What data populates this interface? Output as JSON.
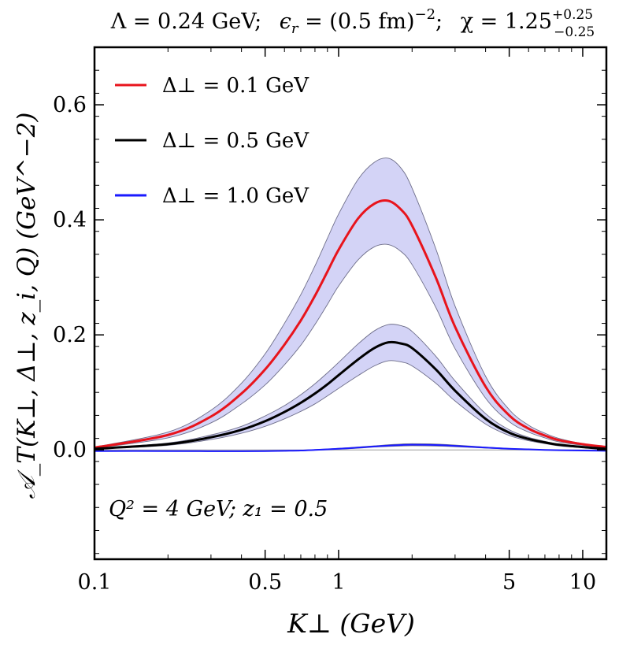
{
  "chart_data": {
    "type": "line",
    "title": "Λ = 0.24 GeV;  ϵ_r = (0.5 fm)^−2;  χ = 1.25^{+0.25}_{−0.25}",
    "title_parts": {
      "lambda": "Λ = 0.24 GeV;",
      "epsilon_lhs": "ϵ",
      "epsilon_sub": "r",
      "epsilon_rhs": " = (0.5 fm)",
      "epsilon_sup": "−2",
      "epsilon_end": ";",
      "chi": "χ = 1.25",
      "chi_sup": "+0.25",
      "chi_sub": "−0.25"
    },
    "xlabel": "K⊥ (GeV)",
    "ylabel": "𝒜_T(K⊥, Δ⊥, z_i, Q) (GeV^−2)",
    "xscale": "log",
    "xlim": [
      0.1,
      12.5
    ],
    "ylim": [
      -0.19,
      0.7
    ],
    "x_ticks": [
      {
        "value": 0.1,
        "label": "0.1"
      },
      {
        "value": 0.5,
        "label": "0.5"
      },
      {
        "value": 1,
        "label": "1"
      },
      {
        "value": 5,
        "label": "5"
      },
      {
        "value": 10,
        "label": "10"
      }
    ],
    "y_ticks": [
      {
        "value": 0.0,
        "label": "0.0"
      },
      {
        "value": 0.2,
        "label": "0.2"
      },
      {
        "value": 0.4,
        "label": "0.4"
      },
      {
        "value": 0.6,
        "label": "0.6"
      }
    ],
    "annotation": "Q² = 4 GeV; z₁ = 0.5",
    "legend_position": "top-left",
    "band_color": "#d3d3f6",
    "x": [
      0.1,
      0.2,
      0.3,
      0.4,
      0.5,
      0.6,
      0.7,
      0.8,
      0.9,
      1.0,
      1.2,
      1.4,
      1.6,
      1.8,
      2.0,
      2.5,
      3.0,
      4.0,
      5.0,
      6.0,
      7.0,
      8.0,
      10.0,
      12.5
    ],
    "series": [
      {
        "name": "Δ⊥ = 0.1 GeV",
        "color": "#e8141c",
        "values": [
          0.004,
          0.026,
          0.058,
          0.098,
          0.14,
          0.183,
          0.225,
          0.268,
          0.31,
          0.348,
          0.402,
          0.428,
          0.433,
          0.418,
          0.39,
          0.3,
          0.214,
          0.11,
          0.06,
          0.037,
          0.025,
          0.017,
          0.01,
          0.005
        ],
        "band_upper": [
          0.005,
          0.031,
          0.069,
          0.116,
          0.167,
          0.22,
          0.27,
          0.32,
          0.368,
          0.41,
          0.47,
          0.5,
          0.507,
          0.49,
          0.455,
          0.35,
          0.25,
          0.128,
          0.07,
          0.043,
          0.029,
          0.02,
          0.011,
          0.006
        ],
        "band_lower": [
          0.003,
          0.021,
          0.047,
          0.08,
          0.113,
          0.148,
          0.182,
          0.218,
          0.253,
          0.285,
          0.33,
          0.353,
          0.357,
          0.345,
          0.322,
          0.248,
          0.176,
          0.09,
          0.049,
          0.031,
          0.021,
          0.014,
          0.008,
          0.004
        ]
      },
      {
        "name": "Δ⊥ = 0.5 GeV",
        "color": "#000000",
        "values": [
          0.002,
          0.01,
          0.022,
          0.035,
          0.05,
          0.066,
          0.082,
          0.098,
          0.114,
          0.13,
          0.157,
          0.177,
          0.187,
          0.185,
          0.177,
          0.14,
          0.103,
          0.054,
          0.03,
          0.019,
          0.013,
          0.009,
          0.005,
          0.002
        ],
        "band_upper": [
          0.0025,
          0.012,
          0.026,
          0.041,
          0.059,
          0.077,
          0.096,
          0.115,
          0.134,
          0.152,
          0.184,
          0.207,
          0.218,
          0.216,
          0.206,
          0.163,
          0.12,
          0.063,
          0.035,
          0.022,
          0.015,
          0.01,
          0.006,
          0.0025
        ],
        "band_lower": [
          0.0015,
          0.008,
          0.018,
          0.029,
          0.041,
          0.054,
          0.067,
          0.08,
          0.094,
          0.107,
          0.129,
          0.146,
          0.155,
          0.153,
          0.146,
          0.116,
          0.085,
          0.045,
          0.025,
          0.016,
          0.011,
          0.007,
          0.004,
          0.0015
        ]
      },
      {
        "name": "Δ⊥ = 1.0 GeV",
        "color": "#1a1aff",
        "values": [
          -0.002,
          -0.002,
          -0.0022,
          -0.0022,
          -0.002,
          -0.0015,
          -0.001,
          0.0,
          0.001,
          0.002,
          0.004,
          0.006,
          0.0075,
          0.0085,
          0.009,
          0.0085,
          0.007,
          0.004,
          0.002,
          0.001,
          0.0,
          -0.0005,
          -0.001,
          -0.0015
        ],
        "band_upper": [
          -0.0015,
          -0.0015,
          -0.0017,
          -0.0017,
          -0.0015,
          -0.001,
          -0.0005,
          0.0005,
          0.0016,
          0.0027,
          0.005,
          0.007,
          0.009,
          0.0102,
          0.0108,
          0.0102,
          0.0084,
          0.0048,
          0.0025,
          0.0013,
          0.0002,
          -0.0003,
          -0.0008,
          -0.0012
        ],
        "band_lower": [
          -0.0025,
          -0.0025,
          -0.0027,
          -0.0027,
          -0.0025,
          -0.002,
          -0.0015,
          -0.0005,
          0.0004,
          0.0013,
          0.003,
          0.005,
          0.006,
          0.0068,
          0.0072,
          0.0068,
          0.0056,
          0.0032,
          0.0015,
          0.0007,
          -0.0002,
          -0.0007,
          -0.0012,
          -0.0018
        ]
      }
    ]
  }
}
